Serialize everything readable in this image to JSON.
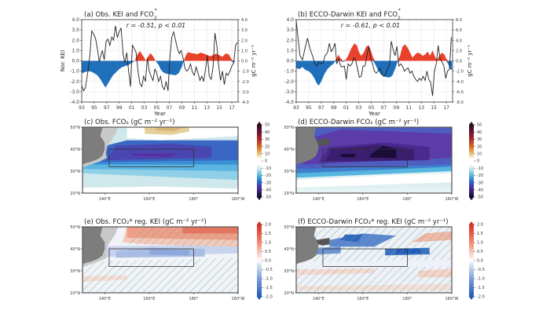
{
  "chart_data": [
    {
      "id": "a",
      "type": "line",
      "title": "(a) Obs. KEI and FCO",
      "title_sub": "2",
      "title_sup": "*",
      "annotation": "r = -0.51, p < 0.01",
      "xlabel": "Year",
      "ylabel": "Nor. KEI",
      "ylabel_right": "gC m⁻² yr⁻¹",
      "xlim": [
        1993,
        2018
      ],
      "ylim": [
        -4,
        4
      ],
      "ylim_right": [
        -4,
        4
      ],
      "x_ticks": [
        "93",
        "95",
        "97",
        "99",
        "01",
        "03",
        "05",
        "07",
        "09",
        "11",
        "13",
        "15",
        "17"
      ],
      "y_ticks": [
        "4.0",
        "3.0",
        "2.0",
        "1.0",
        "0.0",
        "-1.0",
        "-2.0",
        "-3.0",
        "-4.0"
      ],
      "y_ticks_right": [
        "4.0",
        "3.0",
        "2.0",
        "1.0",
        "0.0",
        "-1.0",
        "-2.0",
        "-3.0",
        "-4.0"
      ],
      "grid": true,
      "series": [
        {
          "name": "FCO2* (fill)",
          "kind": "area-signed",
          "pos_color": "#e8412c",
          "neg_color": "#1f6fba",
          "x": [
            1993,
            1993.5,
            1994,
            1994.5,
            1995,
            1995.5,
            1996,
            1996.5,
            1996.8,
            1997,
            1997.5,
            1998,
            1998.5,
            1999,
            1999.5,
            2000,
            2000.5,
            2001,
            2001.5,
            2001.8,
            2002.3,
            2002.8,
            2003.3,
            2003.6,
            2004,
            2004.5,
            2004.8,
            2005.3,
            2005.6,
            2006,
            2006.5,
            2007,
            2007.5,
            2008,
            2008.5,
            2009,
            2009.3,
            2009.7,
            2010,
            2010.5,
            2011,
            2011.5,
            2012,
            2012.5,
            2013,
            2013.5,
            2014,
            2014.5,
            2015,
            2015.5,
            2016,
            2016.5,
            2016.9,
            2017.2,
            2017.5
          ],
          "y": [
            -1.2,
            -1.1,
            -1.0,
            -1.05,
            -1.2,
            -1.4,
            -1.8,
            -2.3,
            -2.6,
            -2.4,
            -1.9,
            -1.4,
            -1.1,
            -0.8,
            -0.6,
            -0.5,
            -0.4,
            -0.2,
            0,
            0.5,
            0.95,
            0.5,
            0,
            0.4,
            0.75,
            0.35,
            0,
            -0.4,
            -0.8,
            -1.1,
            -1.25,
            -1.3,
            -1.35,
            -1.4,
            -1.2,
            -0.6,
            0,
            0.6,
            0.85,
            0.75,
            0.7,
            0.65,
            0.8,
            0.7,
            0.6,
            0.45,
            0.55,
            0.7,
            0.55,
            0.4,
            0.7,
            0.65,
            0.2,
            -0.15,
            -0.1
          ]
        },
        {
          "name": "KEI",
          "kind": "line",
          "color": "#222222",
          "x": [
            1993,
            1993.3,
            1993.6,
            1994,
            1994.3,
            1994.6,
            1994.9,
            1995.2,
            1995.5,
            1995.8,
            1996.1,
            1996.3,
            1996.6,
            1996.9,
            1997.2,
            1997.5,
            1997.8,
            1998.1,
            1998.4,
            1998.7,
            1999,
            1999.3,
            1999.6,
            1999.9,
            2000.2,
            2000.5,
            2000.8,
            2001.1,
            2001.4,
            2001.7,
            2002,
            2002.3,
            2002.6,
            2002.9,
            2003.2,
            2003.5,
            2003.8,
            2004.1,
            2004.4,
            2004.7,
            2005,
            2005.3,
            2005.6,
            2005.9,
            2006.2,
            2006.5,
            2006.8,
            2007.1,
            2007.4,
            2007.7,
            2008,
            2008.3,
            2008.6,
            2008.9,
            2009.2,
            2009.5,
            2009.8,
            2010.1,
            2010.4,
            2010.7,
            2011,
            2011.3,
            2011.6,
            2011.9,
            2012.2,
            2012.5,
            2012.8,
            2013.1,
            2013.4,
            2013.7,
            2014,
            2014.3,
            2014.6,
            2014.9,
            2015.2,
            2015.5,
            2015.8,
            2016.1,
            2016.4,
            2016.7,
            2017,
            2017.3,
            2017.6,
            2017.9
          ],
          "y": [
            -2.4,
            -2.9,
            -2.6,
            -1.0,
            0.5,
            2.9,
            2.6,
            2.2,
            1.2,
            -0.1,
            0.6,
            1.0,
            0.1,
            1.9,
            2.1,
            1.5,
            2.3,
            2.0,
            3.4,
            2.3,
            2.8,
            3.2,
            0.7,
            -0.2,
            0.8,
            -1.0,
            -2.5,
            1.5,
            1.2,
            0.8,
            -1.0,
            -2.2,
            -2.5,
            -1.5,
            -2.0,
            0.3,
            -1.0,
            -1.5,
            -1.9,
            -0.8,
            -1.2,
            -2.0,
            -1.5,
            -2.5,
            -2.8,
            -2.0,
            -2.9,
            0.3,
            2.3,
            2.8,
            2.0,
            1.2,
            0.7,
            1.0,
            0.3,
            -0.7,
            -1.0,
            -0.8,
            -0.3,
            -1.1,
            -1.4,
            -0.6,
            -1.2,
            -1.9,
            -1.5,
            -2.0,
            -0.8,
            0.5,
            -1.5,
            -1.8,
            -0.6,
            2.7,
            1.5,
            -0.5,
            -1.9,
            -1.0,
            -2.3,
            -1.2,
            -1.4,
            -1.0,
            -0.5,
            -0.2,
            1.5,
            1.8
          ]
        }
      ]
    },
    {
      "id": "b",
      "type": "line",
      "title": "(b) ECCO-Darwin KEI and FCO",
      "title_sub": "2",
      "title_sup": "*",
      "annotation": "r = -0.61, p < 0.01",
      "xlabel": "Year",
      "ylabel": "",
      "ylabel_right": "gC m⁻² yr⁻¹",
      "xlim": [
        1993,
        2018
      ],
      "ylim": [
        -4,
        4
      ],
      "ylim_right": [
        -8,
        8
      ],
      "x_ticks": [
        "93",
        "95",
        "97",
        "99",
        "01",
        "03",
        "05",
        "07",
        "09",
        "11",
        "13",
        "15",
        "17"
      ],
      "y_ticks": [
        "4.0",
        "3.0",
        "2.0",
        "1.0",
        "0.0",
        "-1.0",
        "-2.0",
        "-3.0",
        "-4.0"
      ],
      "y_ticks_right": [
        "8.0",
        "6.0",
        "4.0",
        "2.0",
        "0.0",
        "-2.0",
        "-4.0",
        "-6.0",
        "-8.0"
      ],
      "grid": true,
      "series": [
        {
          "name": "FCO2* (fill)",
          "kind": "area-signed",
          "pos_color": "#e8412c",
          "neg_color": "#1f6fba",
          "x": [
            1993,
            1993.5,
            1994,
            1994.5,
            1995,
            1995.5,
            1996,
            1996.3,
            1996.6,
            1997,
            1997.5,
            1998,
            1998.5,
            1998.9,
            1999.2,
            1999.5,
            1999.8,
            2000,
            2000.5,
            2000.9,
            2001.3,
            2001.8,
            2002.3,
            2002.7,
            2003,
            2003.4,
            2003.8,
            2004.2,
            2004.6,
            2005,
            2005.3,
            2005.6,
            2006,
            2006.5,
            2007,
            2007.5,
            2008,
            2008.4,
            2008.8,
            2009.2,
            2009.6,
            2010,
            2010.4,
            2010.8,
            2011.2,
            2011.6,
            2012,
            2012.4,
            2012.8,
            2013.2,
            2013.6,
            2014,
            2014.4,
            2014.8,
            2015.2,
            2015.5,
            2015.9,
            2016.3,
            2016.7,
            2017,
            2017.3,
            2017.6,
            2017.9
          ],
          "y": [
            -0.7,
            -0.8,
            -0.6,
            -0.9,
            -1.0,
            -1.3,
            -1.8,
            -2.2,
            -2.4,
            -2.0,
            -1.3,
            -0.8,
            -0.5,
            -0.3,
            -0.1,
            0.3,
            0.6,
            0.3,
            -0.1,
            0.1,
            0.5,
            1.2,
            1.7,
            1.5,
            0.9,
            0.5,
            0.8,
            1.4,
            1.5,
            0.9,
            0.3,
            -0.3,
            -0.8,
            -1.3,
            -1.5,
            -1.6,
            -1.6,
            -1.4,
            -0.8,
            -0.1,
            0.5,
            1.4,
            1.6,
            1.3,
            0.8,
            0.3,
            0.6,
            0.8,
            0.7,
            0.5,
            0.6,
            0.9,
            0.5,
            1.0,
            0.4,
            0.1,
            0.5,
            0.8,
            0.6,
            0.2,
            -0.3,
            -0.8,
            -0.9
          ]
        },
        {
          "name": "KEI",
          "kind": "line",
          "color": "#222222",
          "x": [
            1993,
            1993.3,
            1993.6,
            1994,
            1994.4,
            1994.8,
            1995.2,
            1995.6,
            1996,
            1996.3,
            1996.6,
            1997,
            1997.3,
            1997.6,
            1998,
            1998.3,
            1998.6,
            1998.9,
            1999.2,
            1999.5,
            1999.8,
            2000.1,
            2000.4,
            2000.7,
            2001,
            2001.3,
            2001.6,
            2001.9,
            2002.2,
            2002.5,
            2002.8,
            2003.1,
            2003.4,
            2003.7,
            2004,
            2004.3,
            2004.6,
            2004.9,
            2005.2,
            2005.5,
            2005.8,
            2006.1,
            2006.4,
            2006.7,
            2007,
            2007.3,
            2007.6,
            2007.9,
            2008.2,
            2008.5,
            2008.8,
            2009.1,
            2009.4,
            2009.7,
            2010,
            2010.3,
            2010.6,
            2010.9,
            2011.2,
            2011.5,
            2011.8,
            2012.1,
            2012.4,
            2012.7,
            2013,
            2013.3,
            2013.6,
            2013.9,
            2014.2,
            2014.5,
            2014.8,
            2015.1,
            2015.4,
            2015.7,
            2016,
            2016.3,
            2016.6,
            2016.9,
            2017.2,
            2017.5,
            2017.8
          ],
          "y": [
            3.9,
            2.2,
            0.5,
            0.1,
            1.2,
            2.2,
            1.2,
            0.5,
            -0.3,
            -0.5,
            -0.1,
            -0.3,
            -0.2,
            0.5,
            0.8,
            1.7,
            0.9,
            1.2,
            1.7,
            -0.3,
            0.2,
            -0.5,
            -0.6,
            -0.5,
            -1.8,
            -0.3,
            -0.5,
            -0.3,
            0.3,
            0.1,
            -0.8,
            -1.6,
            -1.5,
            -0.5,
            -0.5,
            0.5,
            1.4,
            0.3,
            -0.3,
            -1.0,
            -1.2,
            -1.0,
            -0.7,
            -1.3,
            -1.5,
            -1.3,
            -0.7,
            -0.5,
            1.9,
            1.1,
            0.5,
            1.4,
            -0.5,
            -0.3,
            -0.5,
            -1.0,
            -0.8,
            -0.7,
            -1.2,
            -1.0,
            -1.5,
            -1.8,
            -2.0,
            -1.7,
            -1.9,
            -1.5,
            -1.9,
            -1.0,
            -1.8,
            -2.1,
            -3.4,
            -1.0,
            -0.3,
            1.5,
            0.2,
            -0.1,
            -0.5,
            -1.7,
            -1.0,
            -0.8,
            2.3
          ]
        }
      ]
    },
    {
      "id": "c",
      "type": "heatmap",
      "title": "(c) Obs. FCO₂ (gC m⁻² yr⁻¹)",
      "lat_ticks": [
        "50°N",
        "40°N",
        "30°N",
        "20°N"
      ],
      "lon_ticks": [
        "140°E",
        "160°E",
        "180°",
        "160°W"
      ],
      "lon_range": [
        130,
        200
      ],
      "lat_range": [
        20,
        50
      ],
      "box": {
        "lon": [
          142,
          180
        ],
        "lat": [
          32,
          40
        ]
      },
      "colorbar": {
        "min": -50,
        "max": 50,
        "ticks": [
          "50",
          "40",
          "30",
          "20",
          "10",
          "0",
          "-10",
          "-20",
          "-30",
          "-40",
          "-50"
        ],
        "palette": "diverging-purple-orange"
      }
    },
    {
      "id": "d",
      "type": "heatmap",
      "title": "(d) ECCO-Darwin FCO₂ (gC m⁻² yr⁻¹)",
      "lat_ticks": [
        "50°N",
        "40°N",
        "30°N",
        "20°N"
      ],
      "lon_ticks": [
        "140°E",
        "160°E",
        "180°",
        "160°W"
      ],
      "lon_range": [
        130,
        200
      ],
      "lat_range": [
        20,
        50
      ],
      "box": {
        "lon": [
          142,
          180
        ],
        "lat": [
          32,
          40
        ]
      },
      "colorbar": {
        "min": -50,
        "max": 50,
        "ticks": [
          "50",
          "40",
          "30",
          "20",
          "10",
          "0",
          "-10",
          "-20",
          "-30",
          "-40",
          "-50"
        ],
        "palette": "diverging-purple-orange"
      }
    },
    {
      "id": "e",
      "type": "heatmap",
      "title": "(e) Obs. FCO₂* reg. KEI (gC m⁻² yr⁻¹)",
      "lat_ticks": [
        "50°N",
        "40°N",
        "30°N",
        "20°N"
      ],
      "lon_ticks": [
        "140°E",
        "160°E",
        "180°",
        "160°W"
      ],
      "lon_range": [
        130,
        200
      ],
      "lat_range": [
        20,
        50
      ],
      "box": {
        "lon": [
          142,
          180
        ],
        "lat": [
          32,
          40
        ]
      },
      "hatching": "significance",
      "colorbar": {
        "min": -2.0,
        "max": 2.0,
        "ticks": [
          "2.0",
          "1.5",
          "1.0",
          "0.5",
          "0.0",
          "-0.5",
          "-1.0",
          "-1.5",
          "-2.0"
        ],
        "palette": "blue-white-red"
      }
    },
    {
      "id": "f",
      "type": "heatmap",
      "title": "(f) ECCO-Darwin FCO₂* reg. KEI (gC m⁻² yr⁻¹)",
      "lat_ticks": [
        "50°N",
        "40°N",
        "30°N",
        "20°N"
      ],
      "lon_ticks": [
        "140°E",
        "160°E",
        "180°",
        "160°W"
      ],
      "lon_range": [
        130,
        200
      ],
      "lat_range": [
        20,
        50
      ],
      "box": {
        "lon": [
          142,
          180
        ],
        "lat": [
          32,
          40
        ]
      },
      "hatching": "significance",
      "colorbar": {
        "min": -2.0,
        "max": 2.0,
        "ticks": [
          "2.0",
          "1.5",
          "1.0",
          "0.5",
          "0.0",
          "-0.5",
          "-1.0",
          "-1.5",
          "-2.0"
        ],
        "palette": "blue-white-red"
      }
    }
  ],
  "colors": {
    "positive_fill": "#e8412c",
    "negative_fill": "#1f6fba",
    "kei_line": "#222222",
    "land_dark": "#7d7d7d",
    "land_light": "#c8c8c8",
    "grid": "#e6e6e6"
  }
}
